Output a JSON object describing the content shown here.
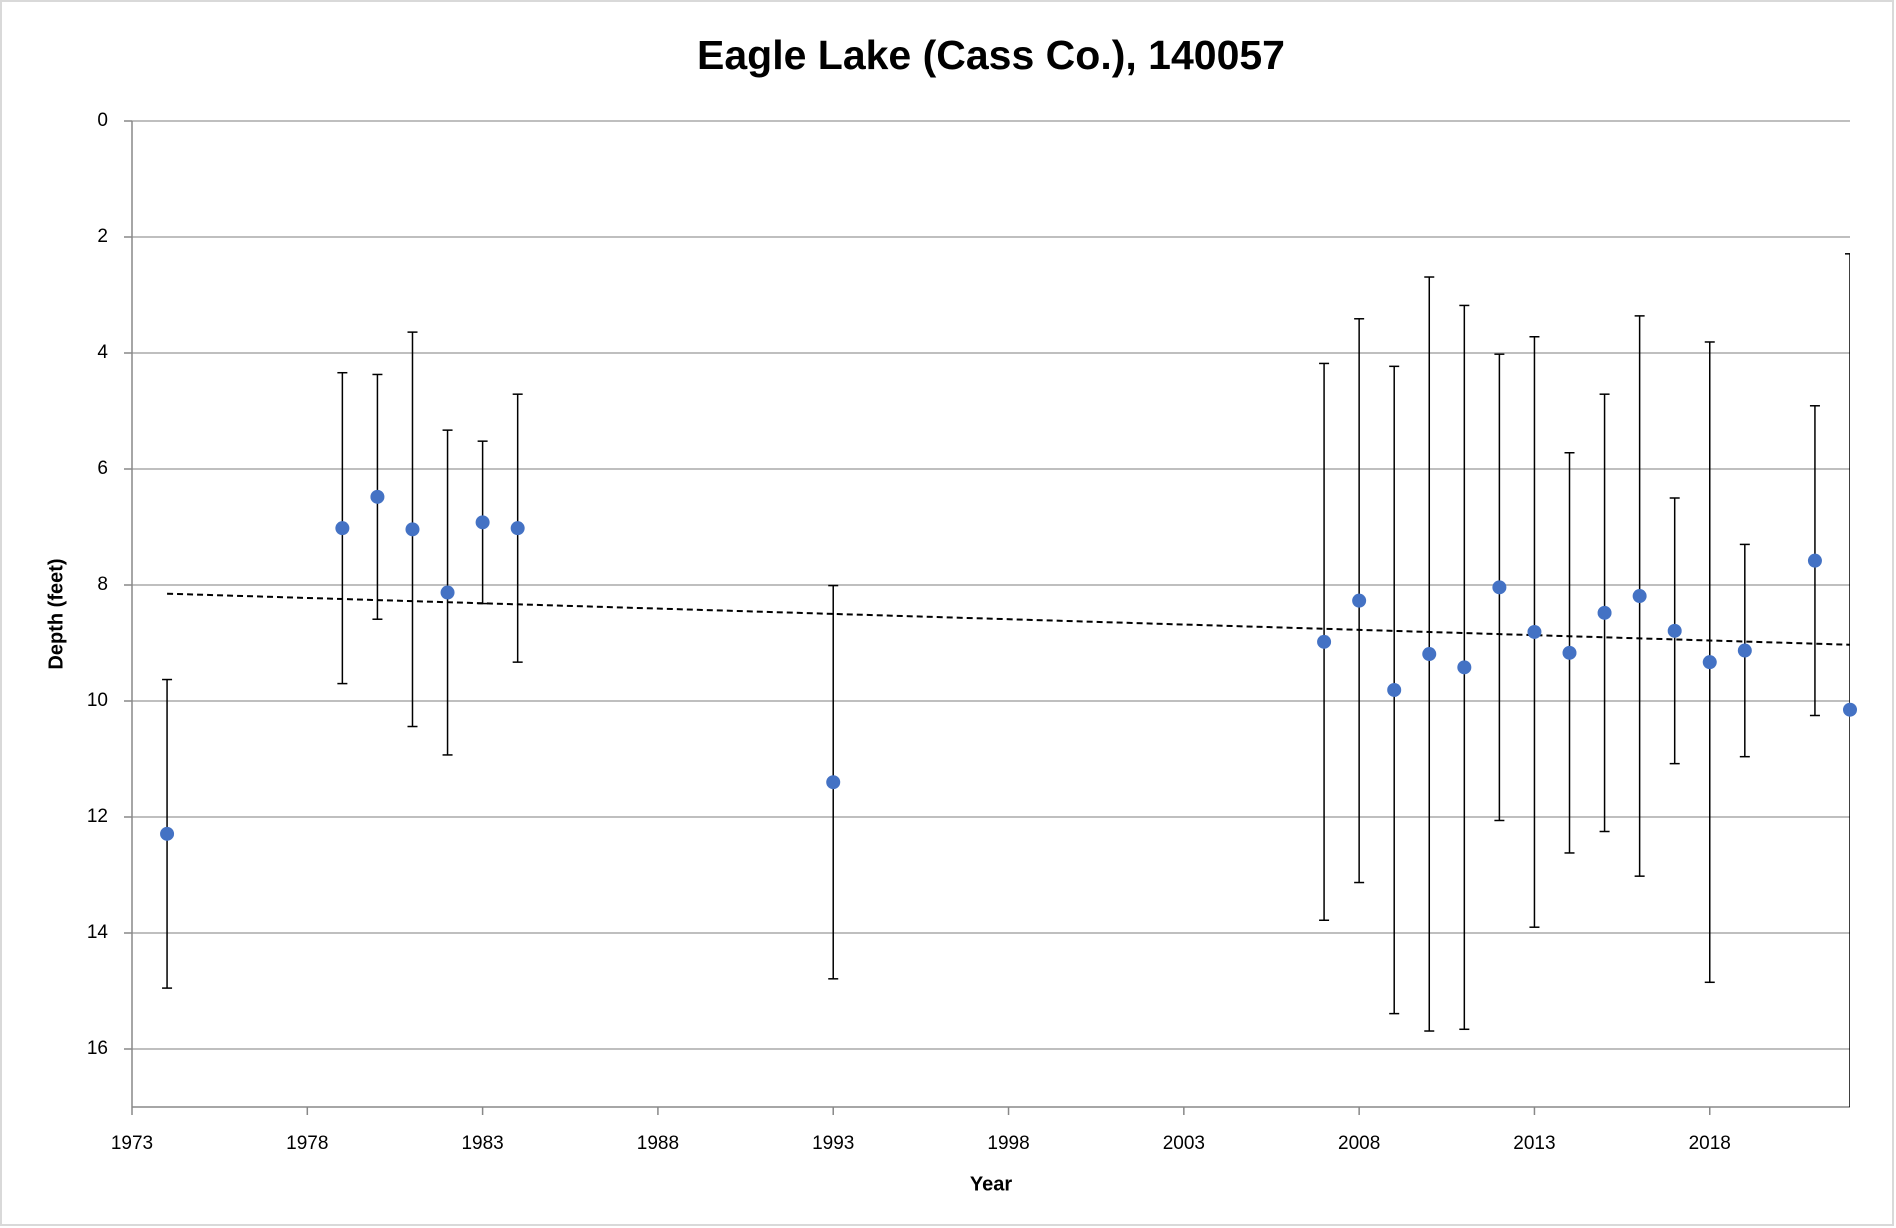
{
  "chart_data": {
    "type": "scatter",
    "title": "Eagle Lake (Cass Co.), 140057",
    "x_label": "Year",
    "y_label": "Depth (feet)",
    "xlim": [
      1973,
      2022
    ],
    "xticks": [
      1973,
      1978,
      1983,
      1988,
      1993,
      1998,
      2003,
      2008,
      2013,
      2018
    ],
    "ylim": [
      0,
      17
    ],
    "yticks": [
      0,
      2,
      4,
      6,
      8,
      10,
      12,
      14,
      16
    ],
    "y_inverted": true,
    "grid": true,
    "series": [
      {
        "color": "#4472c4",
        "x": [
          1974,
          1979,
          1980,
          1981,
          1982,
          1983,
          1984,
          1993,
          2007,
          2008,
          2009,
          2010,
          2011,
          2012,
          2013,
          2014,
          2015,
          2016,
          2017,
          2018,
          2019,
          2021,
          2022
        ],
        "values": [
          12.29,
          7.02,
          6.48,
          7.04,
          8.13,
          6.92,
          7.02,
          11.4,
          8.98,
          8.27,
          9.81,
          9.19,
          9.42,
          8.04,
          8.81,
          9.17,
          8.48,
          8.19,
          8.79,
          9.33,
          9.13,
          7.58,
          10.15
        ],
        "errors": [
          2.66,
          2.68,
          2.11,
          3.4,
          2.8,
          1.4,
          2.31,
          3.39,
          4.8,
          4.86,
          5.58,
          6.5,
          6.24,
          4.02,
          5.09,
          3.45,
          3.77,
          4.83,
          2.29,
          5.52,
          1.83,
          2.67,
          7.86
        ]
      }
    ],
    "trendline": {
      "x": [
        1974,
        2022
      ],
      "values": [
        8.15,
        9.03
      ],
      "style": "dashed",
      "color": "#000000"
    }
  }
}
